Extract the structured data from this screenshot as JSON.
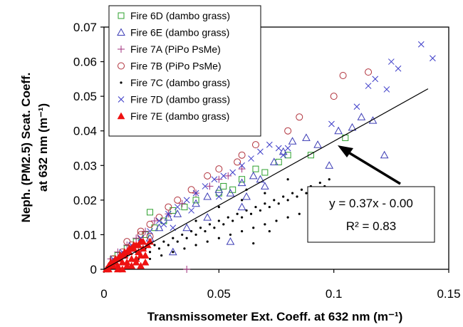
{
  "chart_data": {
    "type": "scatter",
    "xlabel": "Transmissometer Ext. Coeff. at 632 nm (m⁻¹)",
    "ylabel_line1": "Neph. (PM2.5) Scat. Coeff.",
    "ylabel_line2": "at 632 nm (m⁻¹)",
    "xlim": [
      0,
      0.15
    ],
    "ylim": [
      0,
      0.07
    ],
    "x_ticks": [
      0,
      0.05,
      0.1,
      0.15
    ],
    "x_tick_labels": [
      "0",
      "0.05",
      "0.1",
      "0.15"
    ],
    "y_ticks": [
      0,
      0.01,
      0.02,
      0.03,
      0.04,
      0.05,
      0.06,
      0.07
    ],
    "y_tick_labels": [
      "0",
      "0.01",
      "0.02",
      "0.03",
      "0.04",
      "0.05",
      "0.06",
      "0.07"
    ],
    "grid": false,
    "legend_position": "top-left",
    "trendline": {
      "slope": 0.37,
      "intercept": 0.0,
      "x_range": [
        0,
        0.141
      ],
      "equation": "y = 0.37x - 0.00",
      "r2": "R² = 0.83"
    },
    "series": [
      {
        "name": "Fire 6D (dambo grass)",
        "marker": "square-open",
        "color": "#2ca02c",
        "points": [
          [
            0.004,
            0.003
          ],
          [
            0.006,
            0.004
          ],
          [
            0.01,
            0.006
          ],
          [
            0.014,
            0.008
          ],
          [
            0.018,
            0.01
          ],
          [
            0.022,
            0.012
          ],
          [
            0.026,
            0.014
          ],
          [
            0.03,
            0.017
          ],
          [
            0.035,
            0.018
          ],
          [
            0.04,
            0.02
          ],
          [
            0.05,
            0.022
          ],
          [
            0.052,
            0.024
          ],
          [
            0.056,
            0.023
          ],
          [
            0.06,
            0.026
          ],
          [
            0.066,
            0.029
          ],
          [
            0.07,
            0.028
          ],
          [
            0.076,
            0.031
          ],
          [
            0.08,
            0.033
          ],
          [
            0.09,
            0.033
          ],
          [
            0.105,
            0.038
          ],
          [
            0.02,
            0.0165
          ]
        ]
      },
      {
        "name": "Fire 6E (dambo grass)",
        "marker": "triangle-open",
        "color": "#3b3bb5",
        "points": [
          [
            0.004,
            0.002
          ],
          [
            0.008,
            0.004
          ],
          [
            0.012,
            0.006
          ],
          [
            0.016,
            0.008
          ],
          [
            0.02,
            0.009
          ],
          [
            0.024,
            0.012
          ],
          [
            0.028,
            0.015
          ],
          [
            0.032,
            0.016
          ],
          [
            0.036,
            0.012
          ],
          [
            0.04,
            0.019
          ],
          [
            0.045,
            0.021
          ],
          [
            0.05,
            0.023
          ],
          [
            0.055,
            0.022
          ],
          [
            0.06,
            0.025
          ],
          [
            0.065,
            0.027
          ],
          [
            0.07,
            0.024
          ],
          [
            0.074,
            0.031
          ],
          [
            0.078,
            0.034
          ],
          [
            0.082,
            0.037
          ],
          [
            0.088,
            0.038
          ],
          [
            0.093,
            0.036
          ],
          [
            0.098,
            0.03
          ],
          [
            0.102,
            0.04
          ],
          [
            0.108,
            0.041
          ],
          [
            0.112,
            0.044
          ],
          [
            0.117,
            0.043
          ],
          [
            0.122,
            0.033
          ],
          [
            0.06,
            0.018
          ],
          [
            0.045,
            0.015
          ],
          [
            0.055,
            0.008
          ],
          [
            0.03,
            0.005
          ],
          [
            0.062,
            0.021
          ],
          [
            0.068,
            0.026
          ]
        ]
      },
      {
        "name": "Fire 7A (PiPo PsMe)",
        "marker": "plus",
        "color": "#a0307d",
        "points": [
          [
            0.003,
            0.003
          ],
          [
            0.006,
            0.005
          ],
          [
            0.01,
            0.007
          ],
          [
            0.014,
            0.009
          ],
          [
            0.018,
            0.011
          ],
          [
            0.022,
            0.014
          ],
          [
            0.028,
            0.016
          ],
          [
            0.034,
            0.019
          ],
          [
            0.04,
            0.022
          ],
          [
            0.046,
            0.024
          ],
          [
            0.05,
            0.026
          ],
          [
            0.054,
            0.027
          ],
          [
            0.06,
            0.029
          ],
          [
            0.036,
            0.0
          ],
          [
            0.015,
            0.005
          ]
        ]
      },
      {
        "name": "Fire 7B (PiPo PsMe)",
        "marker": "circle-open",
        "color": "#b0303a",
        "points": [
          [
            0.004,
            0.003
          ],
          [
            0.008,
            0.005
          ],
          [
            0.012,
            0.007
          ],
          [
            0.016,
            0.01
          ],
          [
            0.02,
            0.013
          ],
          [
            0.024,
            0.015
          ],
          [
            0.028,
            0.018
          ],
          [
            0.032,
            0.02
          ],
          [
            0.038,
            0.023
          ],
          [
            0.045,
            0.027
          ],
          [
            0.05,
            0.029
          ],
          [
            0.058,
            0.031
          ],
          [
            0.06,
            0.033
          ],
          [
            0.066,
            0.036
          ],
          [
            0.08,
            0.04
          ],
          [
            0.085,
            0.044
          ],
          [
            0.1,
            0.05
          ],
          [
            0.104,
            0.056
          ],
          [
            0.115,
            0.057
          ],
          [
            0.02,
            0.0095
          ],
          [
            0.016,
            0.011
          ],
          [
            0.01,
            0.008
          ]
        ]
      },
      {
        "name": "Fire 7C (dambo grass)",
        "marker": "dot",
        "color": "#000000",
        "points": [
          [
            0.002,
            0.001
          ],
          [
            0.004,
            0.002
          ],
          [
            0.006,
            0.003
          ],
          [
            0.008,
            0.002
          ],
          [
            0.01,
            0.004
          ],
          [
            0.012,
            0.003
          ],
          [
            0.014,
            0.005
          ],
          [
            0.016,
            0.004
          ],
          [
            0.018,
            0.006
          ],
          [
            0.02,
            0.005
          ],
          [
            0.022,
            0.007
          ],
          [
            0.024,
            0.006
          ],
          [
            0.026,
            0.008
          ],
          [
            0.028,
            0.007
          ],
          [
            0.03,
            0.009
          ],
          [
            0.032,
            0.008
          ],
          [
            0.034,
            0.01
          ],
          [
            0.036,
            0.009
          ],
          [
            0.038,
            0.011
          ],
          [
            0.04,
            0.01
          ],
          [
            0.042,
            0.012
          ],
          [
            0.044,
            0.011
          ],
          [
            0.046,
            0.013
          ],
          [
            0.048,
            0.012
          ],
          [
            0.05,
            0.014
          ],
          [
            0.052,
            0.013
          ],
          [
            0.054,
            0.015
          ],
          [
            0.056,
            0.014
          ],
          [
            0.058,
            0.016
          ],
          [
            0.06,
            0.015
          ],
          [
            0.062,
            0.017
          ],
          [
            0.064,
            0.016
          ],
          [
            0.066,
            0.018
          ],
          [
            0.068,
            0.017
          ],
          [
            0.07,
            0.019
          ],
          [
            0.072,
            0.018
          ],
          [
            0.074,
            0.02
          ],
          [
            0.076,
            0.019
          ],
          [
            0.078,
            0.021
          ],
          [
            0.08,
            0.02
          ],
          [
            0.082,
            0.022
          ],
          [
            0.084,
            0.021
          ],
          [
            0.086,
            0.023
          ],
          [
            0.088,
            0.022
          ],
          [
            0.09,
            0.024
          ],
          [
            0.092,
            0.023
          ],
          [
            0.094,
            0.025
          ],
          [
            0.096,
            0.024
          ],
          [
            0.098,
            0.026
          ],
          [
            0.01,
            0.002
          ],
          [
            0.015,
            0.003
          ],
          [
            0.02,
            0.003
          ],
          [
            0.025,
            0.004
          ],
          [
            0.03,
            0.005
          ],
          [
            0.035,
            0.006
          ],
          [
            0.04,
            0.007
          ],
          [
            0.045,
            0.008
          ],
          [
            0.05,
            0.009
          ],
          [
            0.055,
            0.01
          ],
          [
            0.06,
            0.011
          ],
          [
            0.065,
            0.012
          ],
          [
            0.07,
            0.013
          ],
          [
            0.075,
            0.014
          ],
          [
            0.08,
            0.015
          ],
          [
            0.085,
            0.016
          ],
          [
            0.06,
            0.02
          ],
          [
            0.07,
            0.022
          ],
          [
            0.08,
            0.026
          ],
          [
            0.05,
            0.018
          ],
          [
            0.065,
            0.0075
          ],
          [
            0.072,
            0.011
          ],
          [
            0.04,
            0.014
          ],
          [
            0.062,
            0.023
          ]
        ]
      },
      {
        "name": "Fire 7D (dambo grass)",
        "marker": "x",
        "color": "#3b3bc8",
        "points": [
          [
            0.004,
            0.003
          ],
          [
            0.008,
            0.005
          ],
          [
            0.012,
            0.007
          ],
          [
            0.016,
            0.009
          ],
          [
            0.02,
            0.011
          ],
          [
            0.024,
            0.014
          ],
          [
            0.028,
            0.016
          ],
          [
            0.032,
            0.018
          ],
          [
            0.036,
            0.02
          ],
          [
            0.04,
            0.022
          ],
          [
            0.044,
            0.024
          ],
          [
            0.048,
            0.026
          ],
          [
            0.052,
            0.027
          ],
          [
            0.056,
            0.028
          ],
          [
            0.06,
            0.03
          ],
          [
            0.064,
            0.032
          ],
          [
            0.068,
            0.034
          ],
          [
            0.072,
            0.036
          ],
          [
            0.076,
            0.035
          ],
          [
            0.078,
            0.033
          ],
          [
            0.08,
            0.035
          ],
          [
            0.099,
            0.042
          ],
          [
            0.11,
            0.047
          ],
          [
            0.115,
            0.053
          ],
          [
            0.118,
            0.055
          ],
          [
            0.123,
            0.052
          ],
          [
            0.125,
            0.06
          ],
          [
            0.128,
            0.058
          ],
          [
            0.138,
            0.065
          ],
          [
            0.143,
            0.061
          ],
          [
            0.03,
            0.012
          ],
          [
            0.026,
            0.013
          ],
          [
            0.038,
            0.017
          ],
          [
            0.05,
            0.021
          ]
        ]
      },
      {
        "name": "Fire 7E (dambo grass)",
        "marker": "triangle-filled",
        "color": "#ee1111",
        "points": [
          [
            0.001,
            0.0
          ],
          [
            0.002,
            0.001
          ],
          [
            0.003,
            0.001
          ],
          [
            0.004,
            0.002
          ],
          [
            0.005,
            0.002
          ],
          [
            0.006,
            0.003
          ],
          [
            0.007,
            0.003
          ],
          [
            0.008,
            0.004
          ],
          [
            0.009,
            0.004
          ],
          [
            0.01,
            0.005
          ],
          [
            0.011,
            0.005
          ],
          [
            0.012,
            0.006
          ],
          [
            0.013,
            0.006
          ],
          [
            0.014,
            0.007
          ],
          [
            0.015,
            0.007
          ],
          [
            0.016,
            0.008
          ],
          [
            0.017,
            0.008
          ],
          [
            0.002,
            0.0
          ],
          [
            0.004,
            0.001
          ],
          [
            0.006,
            0.001
          ],
          [
            0.008,
            0.002
          ],
          [
            0.01,
            0.002
          ],
          [
            0.012,
            0.003
          ],
          [
            0.014,
            0.003
          ],
          [
            0.016,
            0.004
          ],
          [
            0.018,
            0.004
          ],
          [
            0.003,
            0.002
          ],
          [
            0.005,
            0.003
          ],
          [
            0.007,
            0.004
          ],
          [
            0.009,
            0.005
          ],
          [
            0.011,
            0.006
          ],
          [
            0.013,
            0.007
          ],
          [
            0.015,
            0.005
          ],
          [
            0.017,
            0.006
          ],
          [
            0.019,
            0.007
          ],
          [
            0.006,
            0.0
          ],
          [
            0.008,
            0.0
          ],
          [
            0.01,
            0.001
          ],
          [
            0.012,
            0.001
          ],
          [
            0.014,
            0.002
          ],
          [
            0.016,
            0.001
          ],
          [
            0.018,
            0.002
          ],
          [
            0.02,
            0.008
          ]
        ]
      }
    ]
  }
}
